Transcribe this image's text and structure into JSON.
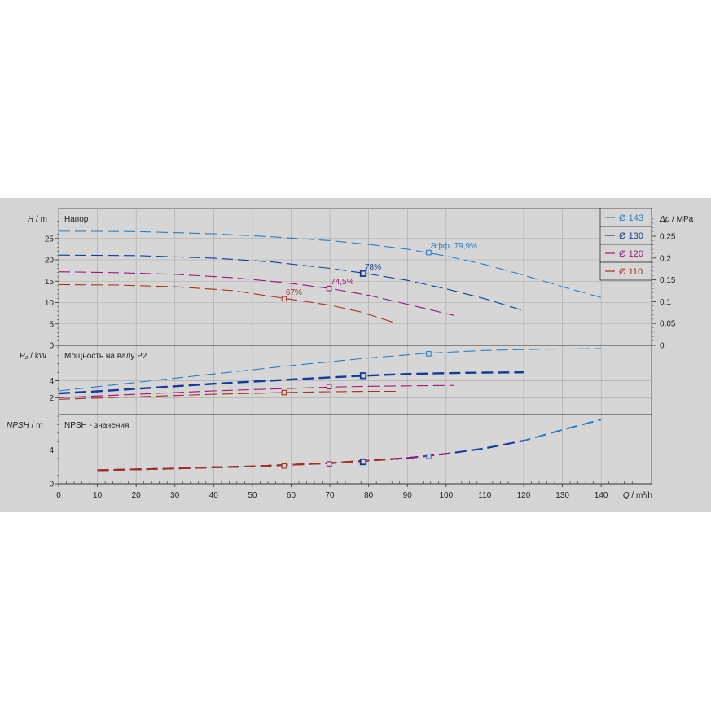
{
  "chart_data": {
    "type": "line",
    "colors": [
      "#2a7fc4",
      "#123b9c",
      "#a0157a",
      "#a8311c"
    ],
    "legend": {
      "placement": "top-right",
      "entries": [
        "Ø 143",
        "Ø 130",
        "Ø 120",
        "Ø 110"
      ]
    },
    "x_axis": {
      "label_q": "Q",
      "label_unit": "/ m³/h",
      "range": [
        0,
        153
      ],
      "ticks": [
        "0",
        "10",
        "20",
        "30",
        "40",
        "50",
        "60",
        "70",
        "80",
        "90",
        "100",
        "110",
        "120",
        "130",
        "140"
      ]
    },
    "panels": {
      "head": {
        "title": "Напор",
        "ylabel_var": "H",
        "ylabel_unit": "/ m",
        "ylim": [
          0,
          32
        ],
        "yticks": [
          "0",
          "5",
          "10",
          "15",
          "20",
          "25"
        ],
        "right_label_var": "Δp",
        "right_label_unit": "/ MPa",
        "right_ylim": [
          0,
          0.3135
        ],
        "right_ticks": [
          "0",
          "0,05",
          "0,1",
          "0,15",
          "0,2",
          "0,25"
        ],
        "series": [
          {
            "name": "Ø 143",
            "x": [
              0,
              20,
              40,
              55,
              70,
              80,
              90,
              100,
              110,
              120,
              130,
              140
            ],
            "y": [
              26.7,
              26.6,
              26.1,
              25.4,
              24.5,
              23.6,
              22.5,
              20.9,
              18.9,
              16.4,
              13.7,
              11.2
            ]
          },
          {
            "name": "Ø 130",
            "x": [
              0,
              20,
              40,
              55,
              70,
              78.6,
              90,
              100,
              110,
              120
            ],
            "y": [
              21.1,
              21.0,
              20.4,
              19.5,
              18.0,
              16.9,
              15.2,
              13.2,
              10.9,
              8.1
            ]
          },
          {
            "name": "Ø 120",
            "x": [
              0,
              15,
              30,
              45,
              58,
              70,
              80,
              90,
              102
            ],
            "y": [
              17.2,
              17.0,
              16.6,
              15.8,
              14.7,
              13.3,
              11.7,
              9.6,
              7.0
            ]
          },
          {
            "name": "Ø 110",
            "x": [
              0,
              15,
              30,
              45,
              58.2,
              70,
              78,
              87
            ],
            "y": [
              14.2,
              14.1,
              13.7,
              12.8,
              11.0,
              9.4,
              7.8,
              5.2
            ]
          }
        ],
        "points": [
          {
            "series": 0,
            "x": 95.5,
            "y": 21.7,
            "label": "Эфф.  79,9%"
          },
          {
            "series": 1,
            "x": 78.6,
            "y": 16.8,
            "label": "78%"
          },
          {
            "series": 2,
            "x": 69.8,
            "y": 13.3,
            "label": "74,5%"
          },
          {
            "series": 3,
            "x": 58.2,
            "y": 10.9,
            "label": "67%"
          }
        ]
      },
      "power": {
        "title": "Мощность на валу P2",
        "ylabel_var": "P₂",
        "ylabel_unit": "/ kW",
        "ylim": [
          0,
          8.2
        ],
        "yticks": [
          "2",
          "4"
        ],
        "series": [
          {
            "name": "Ø 143",
            "x": [
              0,
              10,
              20,
              30,
              40,
              50,
              60,
              70,
              80,
              95,
              110,
              125,
              140
            ],
            "y": [
              2.8,
              3.3,
              3.8,
              4.3,
              4.8,
              5.3,
              5.8,
              6.25,
              6.7,
              7.25,
              7.6,
              7.75,
              7.8
            ]
          },
          {
            "name": "Ø 130",
            "x": [
              0,
              10,
              20,
              30,
              40,
              50,
              60,
              70,
              79,
              90,
              100,
              110,
              120
            ],
            "y": [
              2.5,
              2.75,
              3.05,
              3.35,
              3.65,
              3.9,
              4.15,
              4.4,
              4.6,
              4.8,
              4.9,
              4.97,
              5.0
            ]
          },
          {
            "name": "Ø 120",
            "x": [
              0,
              10,
              20,
              30,
              40,
              50,
              60,
              70,
              80,
              90,
              102
            ],
            "y": [
              2.0,
              2.2,
              2.4,
              2.6,
              2.8,
              2.95,
              3.1,
              3.25,
              3.35,
              3.4,
              3.45
            ]
          },
          {
            "name": "Ø 110",
            "x": [
              0,
              10,
              20,
              30,
              40,
              50,
              58,
              70,
              80,
              87
            ],
            "y": [
              1.8,
              1.95,
              2.1,
              2.25,
              2.4,
              2.5,
              2.6,
              2.7,
              2.75,
              2.75
            ]
          }
        ],
        "points": [
          {
            "series": 0,
            "x": 95.5,
            "y": 7.2
          },
          {
            "series": 1,
            "x": 78.6,
            "y": 4.6
          },
          {
            "series": 2,
            "x": 69.8,
            "y": 3.3
          },
          {
            "series": 3,
            "x": 58.2,
            "y": 2.6
          }
        ]
      },
      "npsh": {
        "title": "NPSH - значения",
        "ylabel_var": "NPSH",
        "ylabel_unit": "/ m",
        "ylim": [
          0,
          8.2
        ],
        "yticks": [
          "0",
          "4"
        ],
        "series": [
          {
            "name": "Ø 143",
            "x": [
              10,
              20,
              30,
              40,
              50,
              60,
              70,
              80,
              90,
              100,
              110,
              120,
              130,
              140
            ],
            "y": [
              1.6,
              1.7,
              1.8,
              1.95,
              2.05,
              2.25,
              2.45,
              2.75,
              3.05,
              3.55,
              4.2,
              5.1,
              6.4,
              7.6
            ]
          },
          {
            "name": "Ø 130",
            "x": [
              10,
              20,
              30,
              40,
              50,
              60,
              70,
              80,
              90,
              100,
              110,
              120
            ],
            "y": [
              1.6,
              1.7,
              1.8,
              1.95,
              2.05,
              2.25,
              2.45,
              2.75,
              3.05,
              3.55,
              4.2,
              5.1
            ]
          },
          {
            "name": "Ø 120",
            "x": [
              10,
              20,
              30,
              40,
              50,
              60,
              70,
              80,
              90,
              102
            ],
            "y": [
              1.6,
              1.7,
              1.8,
              1.95,
              2.05,
              2.25,
              2.45,
              2.75,
              3.05,
              3.65
            ]
          },
          {
            "name": "Ø 110",
            "x": [
              10,
              20,
              30,
              40,
              50,
              60,
              70,
              80,
              87
            ],
            "y": [
              1.6,
              1.7,
              1.8,
              1.95,
              2.05,
              2.25,
              2.45,
              2.75,
              2.95
            ]
          }
        ],
        "points": [
          {
            "series": 0,
            "x": 95.5,
            "y": 3.25
          },
          {
            "series": 1,
            "x": 78.6,
            "y": 2.6
          },
          {
            "series": 2,
            "x": 69.8,
            "y": 2.35
          },
          {
            "series": 3,
            "x": 58.2,
            "y": 2.1
          }
        ]
      }
    }
  }
}
